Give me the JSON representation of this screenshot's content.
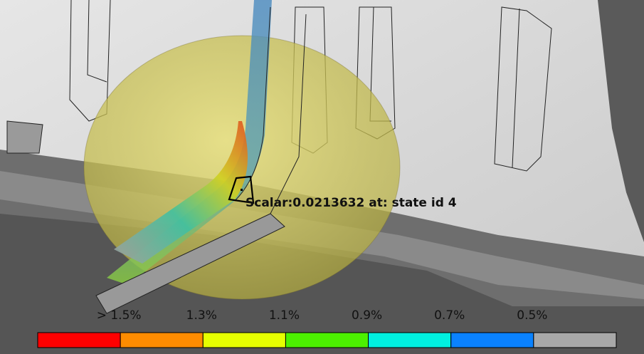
{
  "probe": {
    "text": "Scalar:0.0213632 at: state id 4"
  },
  "legend": {
    "labels": [
      "> 1.5%",
      "1.3%",
      "1.1%",
      "0.9%",
      "0.7%",
      "0.5%"
    ],
    "colors": [
      "#ff0000",
      "#ff8c00",
      "#e6ff00",
      "#4cf000",
      "#00f0e0",
      "#0a82ff",
      "#a8a8a8"
    ]
  }
}
